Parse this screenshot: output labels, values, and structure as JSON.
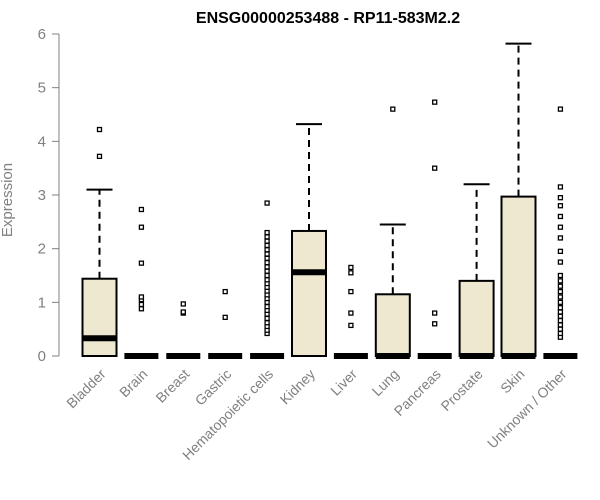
{
  "chart_data": {
    "type": "box",
    "title": "ENSG00000253488 - RP11-583M2.2",
    "xlabel": "",
    "ylabel": "Expression",
    "ylim": [
      0,
      6
    ],
    "yticks": [
      0,
      1,
      2,
      3,
      4,
      5,
      6
    ],
    "box_fill": "#EEE8D0",
    "box_stroke": "#000000",
    "axis_color": "#808080",
    "categories": [
      "Bladder",
      "Brain",
      "Breast",
      "Gastric",
      "Hematopoietic cells",
      "Kidney",
      "Liver",
      "Lung",
      "Pancreas",
      "Prostate",
      "Skin",
      "Unknown / Other"
    ],
    "boxes": [
      {
        "q1": 0.0,
        "median": 0.33,
        "q3": 1.44,
        "whisker_low": 0.0,
        "whisker_high": 3.1,
        "outliers": [
          3.72,
          4.22
        ]
      },
      {
        "q1": 0.0,
        "median": 0.0,
        "q3": 0.0,
        "whisker_low": 0.0,
        "whisker_high": 0.0,
        "outliers": [
          0.88,
          0.96,
          1.05,
          1.1,
          1.73,
          2.4,
          2.73
        ]
      },
      {
        "q1": 0.0,
        "median": 0.0,
        "q3": 0.0,
        "whisker_low": 0.0,
        "whisker_high": 0.0,
        "outliers": [
          0.8,
          0.82,
          0.97
        ]
      },
      {
        "q1": 0.0,
        "median": 0.0,
        "q3": 0.0,
        "whisker_low": 0.0,
        "whisker_high": 0.0,
        "outliers": [
          0.72,
          1.2
        ]
      },
      {
        "q1": 0.0,
        "median": 0.0,
        "q3": 0.0,
        "whisker_low": 0.0,
        "whisker_high": 0.0,
        "outliers": [
          0.42,
          0.48,
          0.55,
          0.62,
          0.7,
          0.78,
          0.85,
          0.92,
          1.0,
          1.07,
          1.14,
          1.21,
          1.28,
          1.35,
          1.42,
          1.5,
          1.58,
          1.66,
          1.74,
          1.82,
          1.9,
          1.98,
          2.06,
          2.14,
          2.22,
          2.3,
          2.85
        ]
      },
      {
        "q1": 0.0,
        "median": 1.56,
        "q3": 2.33,
        "whisker_low": 0.0,
        "whisker_high": 4.32,
        "outliers": []
      },
      {
        "q1": 0.0,
        "median": 0.0,
        "q3": 0.0,
        "whisker_low": 0.0,
        "whisker_high": 0.0,
        "outliers": [
          0.57,
          0.8,
          1.2,
          1.55,
          1.65
        ]
      },
      {
        "q1": 0.0,
        "median": 0.0,
        "q3": 1.15,
        "whisker_low": 0.0,
        "whisker_high": 2.45,
        "outliers": [
          4.6
        ]
      },
      {
        "q1": 0.0,
        "median": 0.0,
        "q3": 0.0,
        "whisker_low": 0.0,
        "whisker_high": 0.0,
        "outliers": [
          0.6,
          0.8,
          3.5,
          4.73
        ]
      },
      {
        "q1": 0.0,
        "median": 0.0,
        "q3": 1.4,
        "whisker_low": 0.0,
        "whisker_high": 3.2,
        "outliers": []
      },
      {
        "q1": 0.0,
        "median": 0.0,
        "q3": 2.97,
        "whisker_low": 0.0,
        "whisker_high": 5.82,
        "outliers": []
      },
      {
        "q1": 0.0,
        "median": 0.0,
        "q3": 0.0,
        "whisker_low": 0.0,
        "whisker_high": 0.0,
        "outliers": [
          0.35,
          0.42,
          0.5,
          0.58,
          0.66,
          0.74,
          0.82,
          0.9,
          1.0,
          1.1,
          1.2,
          1.3,
          1.4,
          1.5,
          1.75,
          1.95,
          2.2,
          2.4,
          2.6,
          2.8,
          2.95,
          3.15,
          4.6
        ]
      }
    ]
  }
}
